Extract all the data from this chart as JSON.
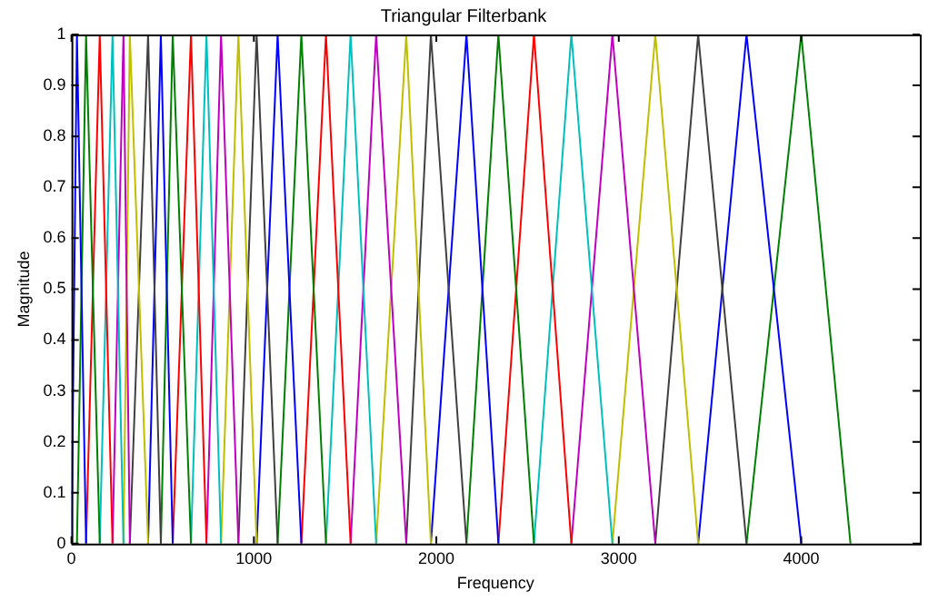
{
  "chart_data": {
    "type": "line",
    "title": "Triangular Filterbank",
    "xlabel": "Frequency",
    "ylabel": "Magnitude",
    "xlim": [
      0,
      4650
    ],
    "xticks": [
      0,
      1000,
      2000,
      3000,
      4000
    ],
    "ylim": [
      0,
      1
    ],
    "yticks": [
      0,
      0.1,
      0.2,
      0.3,
      0.4,
      0.5,
      0.6,
      0.7,
      0.8,
      0.9,
      1
    ],
    "grid": false,
    "legend": false,
    "marker": "none",
    "line_style": "solid",
    "series": [
      {
        "color": "#0000ff",
        "x": [
          0,
          30,
          80
        ],
        "values": [
          0,
          1,
          0
        ]
      },
      {
        "color": "#008000",
        "x": [
          30,
          80,
          155
        ],
        "values": [
          0,
          1,
          0
        ]
      },
      {
        "color": "#ff0000",
        "x": [
          80,
          155,
          225
        ],
        "values": [
          0,
          1,
          0
        ]
      },
      {
        "color": "#00bfbf",
        "x": [
          155,
          225,
          285
        ],
        "values": [
          0,
          1,
          0
        ]
      },
      {
        "color": "#bf00bf",
        "x": [
          225,
          285,
          320
        ],
        "values": [
          0,
          1,
          0
        ]
      },
      {
        "color": "#bfbf00",
        "x": [
          285,
          320,
          420
        ],
        "values": [
          0,
          1,
          0
        ]
      },
      {
        "color": "#404040",
        "x": [
          320,
          420,
          490
        ],
        "values": [
          0,
          1,
          0
        ]
      },
      {
        "color": "#0000ff",
        "x": [
          420,
          490,
          555
        ],
        "values": [
          0,
          1,
          0
        ]
      },
      {
        "color": "#008000",
        "x": [
          490,
          555,
          655
        ],
        "values": [
          0,
          1,
          0
        ]
      },
      {
        "color": "#ff0000",
        "x": [
          555,
          655,
          740
        ],
        "values": [
          0,
          1,
          0
        ]
      },
      {
        "color": "#00bfbf",
        "x": [
          655,
          740,
          820
        ],
        "values": [
          0,
          1,
          0
        ]
      },
      {
        "color": "#bf00bf",
        "x": [
          740,
          820,
          915
        ],
        "values": [
          0,
          1,
          0
        ]
      },
      {
        "color": "#bfbf00",
        "x": [
          820,
          915,
          1015
        ],
        "values": [
          0,
          1,
          0
        ]
      },
      {
        "color": "#404040",
        "x": [
          915,
          1015,
          1130
        ],
        "values": [
          0,
          1,
          0
        ]
      },
      {
        "color": "#0000ff",
        "x": [
          1015,
          1130,
          1260
        ],
        "values": [
          0,
          1,
          0
        ]
      },
      {
        "color": "#008000",
        "x": [
          1130,
          1260,
          1395
        ],
        "values": [
          0,
          1,
          0
        ]
      },
      {
        "color": "#ff0000",
        "x": [
          1260,
          1395,
          1530
        ],
        "values": [
          0,
          1,
          0
        ]
      },
      {
        "color": "#00bfbf",
        "x": [
          1395,
          1530,
          1670
        ],
        "values": [
          0,
          1,
          0
        ]
      },
      {
        "color": "#bf00bf",
        "x": [
          1530,
          1670,
          1835
        ],
        "values": [
          0,
          1,
          0
        ]
      },
      {
        "color": "#bfbf00",
        "x": [
          1670,
          1835,
          1970
        ],
        "values": [
          0,
          1,
          0
        ]
      },
      {
        "color": "#404040",
        "x": [
          1835,
          1970,
          2165
        ],
        "values": [
          0,
          1,
          0
        ]
      },
      {
        "color": "#0000ff",
        "x": [
          1970,
          2165,
          2340
        ],
        "values": [
          0,
          1,
          0
        ]
      },
      {
        "color": "#008000",
        "x": [
          2165,
          2340,
          2535
        ],
        "values": [
          0,
          1,
          0
        ]
      },
      {
        "color": "#ff0000",
        "x": [
          2340,
          2535,
          2740
        ],
        "values": [
          0,
          1,
          0
        ]
      },
      {
        "color": "#00bfbf",
        "x": [
          2535,
          2740,
          2965
        ],
        "values": [
          0,
          1,
          0
        ]
      },
      {
        "color": "#bf00bf",
        "x": [
          2740,
          2965,
          3200
        ],
        "values": [
          0,
          1,
          0
        ]
      },
      {
        "color": "#bfbf00",
        "x": [
          2965,
          3200,
          3435
        ],
        "values": [
          0,
          1,
          0
        ]
      },
      {
        "color": "#404040",
        "x": [
          3200,
          3435,
          3700
        ],
        "values": [
          0,
          1,
          0
        ]
      },
      {
        "color": "#0000ff",
        "x": [
          3435,
          3700,
          4000
        ],
        "values": [
          0,
          1,
          0
        ]
      },
      {
        "color": "#008000",
        "x": [
          3700,
          4000,
          4270
        ],
        "values": [
          0,
          1,
          0
        ]
      }
    ]
  }
}
